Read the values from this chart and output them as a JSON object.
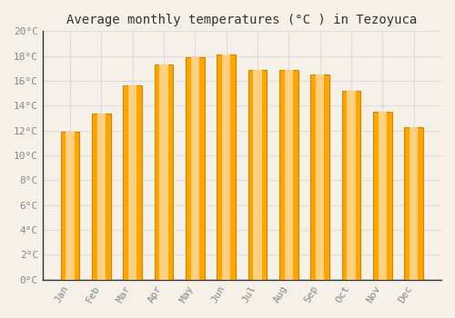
{
  "title": "Average monthly temperatures (°C ) in Tezoyuca",
  "months": [
    "Jan",
    "Feb",
    "Mar",
    "Apr",
    "May",
    "Jun",
    "Jul",
    "Aug",
    "Sep",
    "Oct",
    "Nov",
    "Dec"
  ],
  "values": [
    11.9,
    13.4,
    15.6,
    17.3,
    17.9,
    18.1,
    16.9,
    16.9,
    16.5,
    15.2,
    13.5,
    12.3
  ],
  "bar_color_main": "#FFA500",
  "bar_color_light": "#FFD080",
  "bar_edge_color": "#CC8800",
  "background_color": "#F5F0E8",
  "ytick_labels": [
    "0°C",
    "2°C",
    "4°C",
    "6°C",
    "8°C",
    "10°C",
    "12°C",
    "14°C",
    "16°C",
    "18°C",
    "20°C"
  ],
  "ytick_values": [
    0,
    2,
    4,
    6,
    8,
    10,
    12,
    14,
    16,
    18,
    20
  ],
  "ylim": [
    0,
    20
  ],
  "grid_color": "#E0DADA",
  "title_fontsize": 10,
  "tick_fontsize": 8,
  "font_family": "monospace",
  "bar_width": 0.6
}
